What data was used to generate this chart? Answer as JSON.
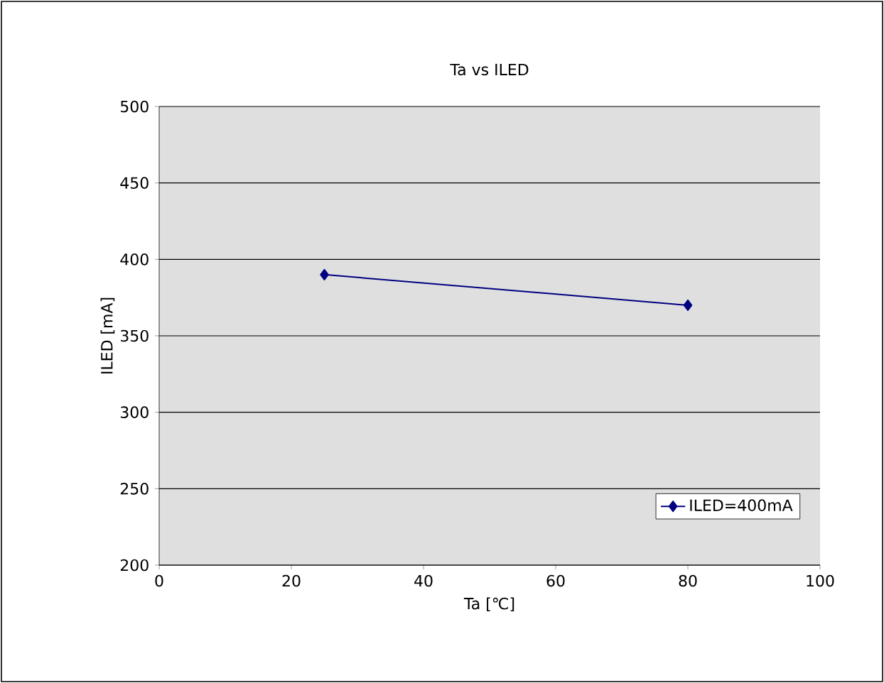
{
  "chart_data": {
    "type": "line",
    "title": "Ta vs ILED",
    "xlabel": "Ta [℃]",
    "ylabel": "ILED [mA]",
    "x": [
      25,
      80
    ],
    "series": [
      {
        "name": "ILED=400mA",
        "color": "#000080",
        "values": [
          390,
          370
        ]
      }
    ],
    "xlim": [
      0,
      100
    ],
    "xticks": [
      0,
      20,
      40,
      60,
      80,
      100
    ],
    "ylim": [
      200,
      500
    ],
    "yticks": [
      200,
      250,
      300,
      350,
      400,
      450,
      500
    ],
    "grid": "y",
    "legend": "bottom right",
    "marker": "diamond",
    "line_style": "solid"
  }
}
